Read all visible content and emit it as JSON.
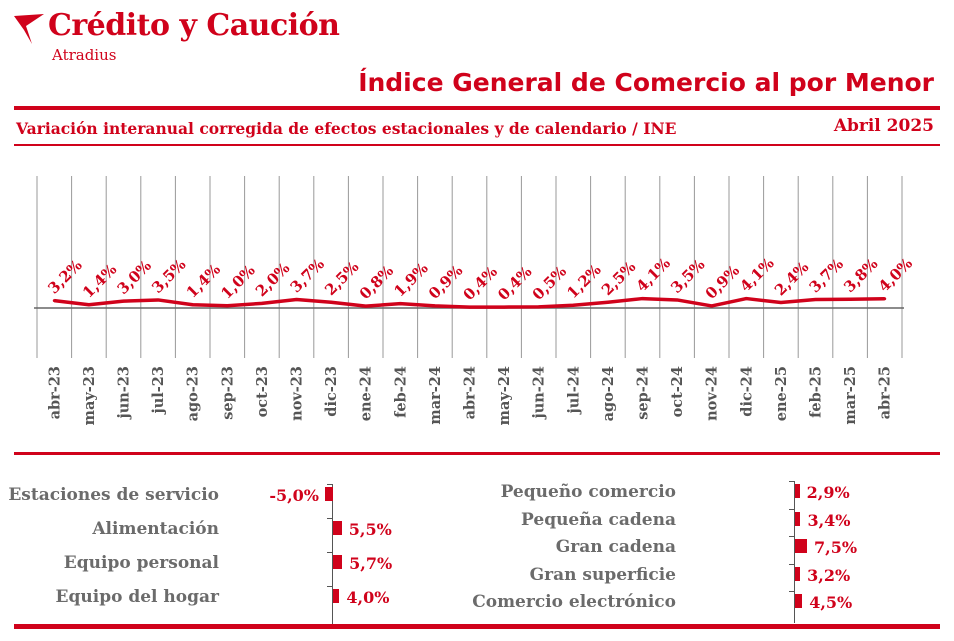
{
  "header": {
    "brand": "Crédito y Caución",
    "brand_sub": "Atradius",
    "title": "Índice General de Comercio al por Menor",
    "subtitle": "Variación interanual corregida de efectos estacionales y de calendario / INE",
    "period": "Abril  2025"
  },
  "colors": {
    "accent": "#d0021b",
    "label_gray": "#6b6b6b",
    "axis": "#555555"
  },
  "icons": {
    "logo": "bird-logo-icon"
  },
  "chart_data": {
    "type": "line",
    "title": "",
    "x": [
      "abr-23",
      "may-23",
      "jun-23",
      "jul-23",
      "ago-23",
      "sep-23",
      "oct-23",
      "nov-23",
      "dic-23",
      "ene-24",
      "feb-24",
      "mar-24",
      "abr-24",
      "may-24",
      "jun-24",
      "jul-24",
      "ago-24",
      "sep-24",
      "oct-24",
      "nov-24",
      "dic-24",
      "ene-25",
      "feb-25",
      "mar-25",
      "abr-25"
    ],
    "series": [
      {
        "values": [
          3.2,
          1.4,
          3.0,
          3.5,
          1.4,
          1.0,
          2.0,
          3.7,
          2.5,
          0.8,
          1.9,
          0.9,
          0.4,
          0.4,
          0.5,
          1.2,
          2.5,
          4.1,
          3.5,
          0.9,
          4.1,
          2.4,
          3.7,
          3.8,
          4.0
        ],
        "labels": [
          "3,2%",
          "1,4%",
          "3,0%",
          "3,5%",
          "1,4%",
          "1,0%",
          "2,0%",
          "3,7%",
          "2,5%",
          "0,8%",
          "1,9%",
          "0,9%",
          "0,4%",
          "0,4%",
          "0,5%",
          "1,2%",
          "2,5%",
          "4,1%",
          "3,5%",
          "0,9%",
          "4,1%",
          "2,4%",
          "3,7%",
          "3,8%",
          "4,0%"
        ]
      }
    ],
    "grid": true
  },
  "breakdown": {
    "left": [
      {
        "label": "Estaciones de servicio",
        "value": -5.0,
        "text": "-5,0%"
      },
      {
        "label": "Alimentación",
        "value": 5.5,
        "text": "5,5%"
      },
      {
        "label": "Equipo personal",
        "value": 5.7,
        "text": "5,7%"
      },
      {
        "label": "Equipo del hogar",
        "value": 4.0,
        "text": "4,0%"
      }
    ],
    "right": [
      {
        "label": "Pequeño comercio",
        "value": 2.9,
        "text": "2,9%"
      },
      {
        "label": "Pequeña cadena",
        "value": 3.4,
        "text": "3,4%"
      },
      {
        "label": "Gran cadena",
        "value": 7.5,
        "text": "7,5%"
      },
      {
        "label": "Gran superficie",
        "value": 3.2,
        "text": "3,2%"
      },
      {
        "label": "Comercio electrónico",
        "value": 4.5,
        "text": "4,5%"
      }
    ]
  }
}
